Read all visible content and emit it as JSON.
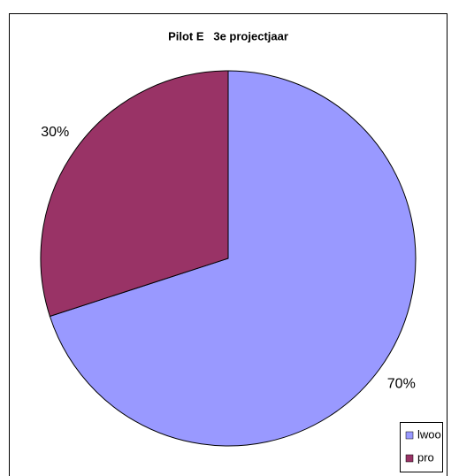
{
  "chart_data": {
    "type": "pie",
    "title": "Pilot E   3e projectjaar",
    "categories": [
      "lwoo",
      "pro"
    ],
    "values": [
      70,
      30
    ],
    "value_labels": [
      "70%",
      "30%"
    ],
    "colors": [
      "#9999ff",
      "#993366"
    ],
    "legend": "bottom-right"
  }
}
